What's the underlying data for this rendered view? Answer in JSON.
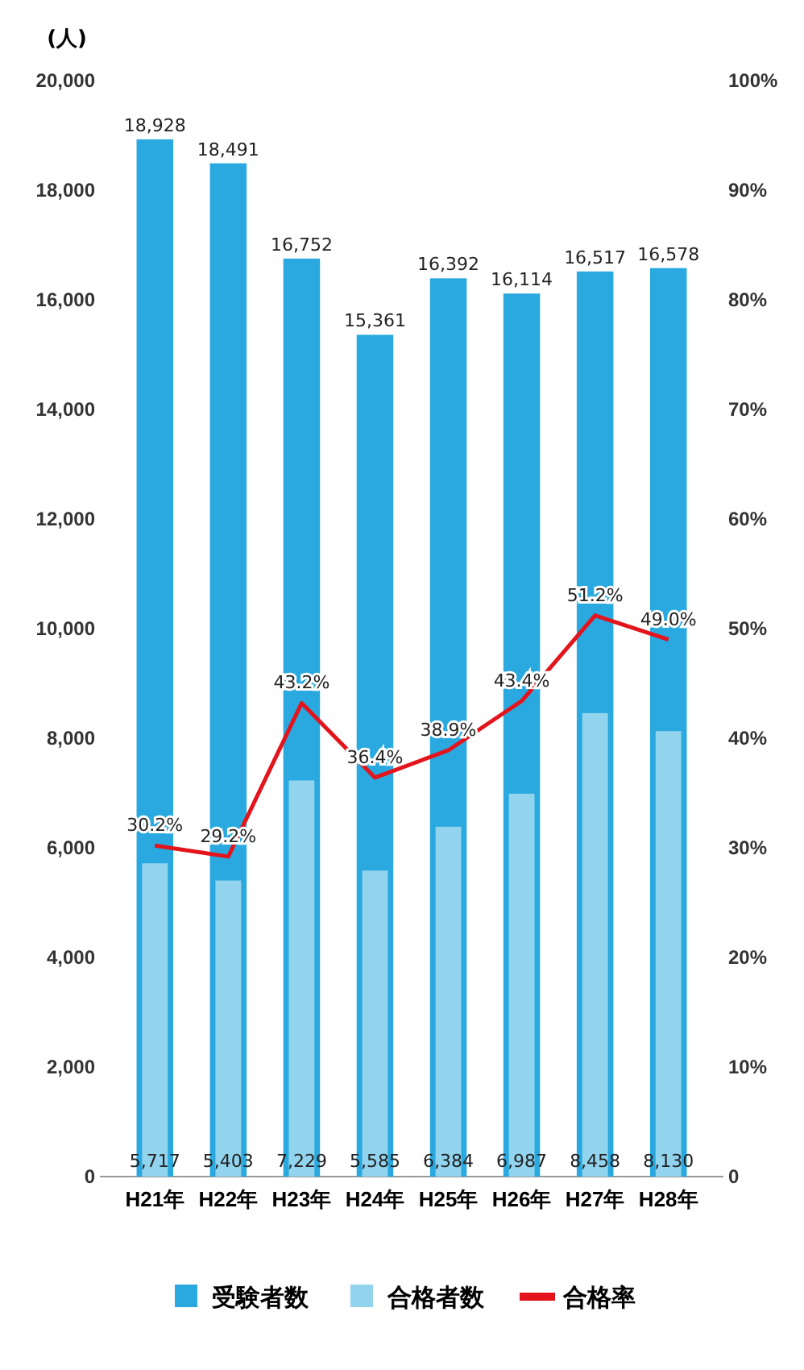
{
  "chart_data": {
    "type": "bar",
    "ylabel": "(人)",
    "categories": [
      "H21年",
      "H22年",
      "H23年",
      "H24年",
      "H25年",
      "H26年",
      "H27年",
      "H28年"
    ],
    "series": [
      {
        "name": "受験者数",
        "color": "#29a9df",
        "values": [
          18928,
          18491,
          16752,
          15361,
          16392,
          16114,
          16517,
          16578
        ],
        "value_labels": [
          "18,928",
          "18,491",
          "16,752",
          "15,361",
          "16,392",
          "16,114",
          "16,517",
          "16,578"
        ]
      },
      {
        "name": "合格者数",
        "color": "#92d3ee",
        "values": [
          5717,
          5403,
          7229,
          5585,
          6384,
          6987,
          8458,
          8130
        ],
        "value_labels": [
          "5,717",
          "5,403",
          "7,229",
          "5,585",
          "6,384",
          "6,987",
          "8,458",
          "8,130"
        ]
      },
      {
        "name": "合格率",
        "type": "line",
        "axis": "y2",
        "color": "#e3141c",
        "values": [
          30.2,
          29.2,
          43.2,
          36.4,
          38.9,
          43.4,
          51.2,
          49.0
        ],
        "value_labels": [
          "30.2%",
          "29.2%",
          "43.2%",
          "36.4%",
          "38.9%",
          "43.4%",
          "51.2%",
          "49.0%"
        ]
      }
    ],
    "ylim": [
      0,
      20000
    ],
    "yticks": [
      0,
      {
        "value": 2000,
        "label": "2,000"
      },
      {
        "value": 4000,
        "label": "4,000"
      },
      {
        "value": 6000,
        "label": "6,000"
      },
      {
        "value": 8000,
        "label": "8,000"
      },
      {
        "value": 10000,
        "label": "10,000"
      },
      {
        "value": 12000,
        "label": "12,000"
      },
      {
        "value": 14000,
        "label": "14,000"
      },
      {
        "value": 16000,
        "label": "16,000"
      },
      {
        "value": 18000,
        "label": "18,000"
      },
      {
        "value": 20000,
        "label": "20,000"
      }
    ],
    "y2lim": [
      0,
      100
    ],
    "y2ticks": [
      0,
      {
        "value": 10,
        "label": "10%"
      },
      {
        "value": 20,
        "label": "20%"
      },
      {
        "value": 30,
        "label": "30%"
      },
      {
        "value": 40,
        "label": "40%"
      },
      {
        "value": 50,
        "label": "50%"
      },
      {
        "value": 60,
        "label": "60%"
      },
      {
        "value": 70,
        "label": "70%"
      },
      {
        "value": 80,
        "label": "80%"
      },
      {
        "value": 90,
        "label": "90%"
      },
      {
        "value": 100,
        "label": "100%"
      }
    ],
    "legend": "bottom",
    "grid": false
  }
}
